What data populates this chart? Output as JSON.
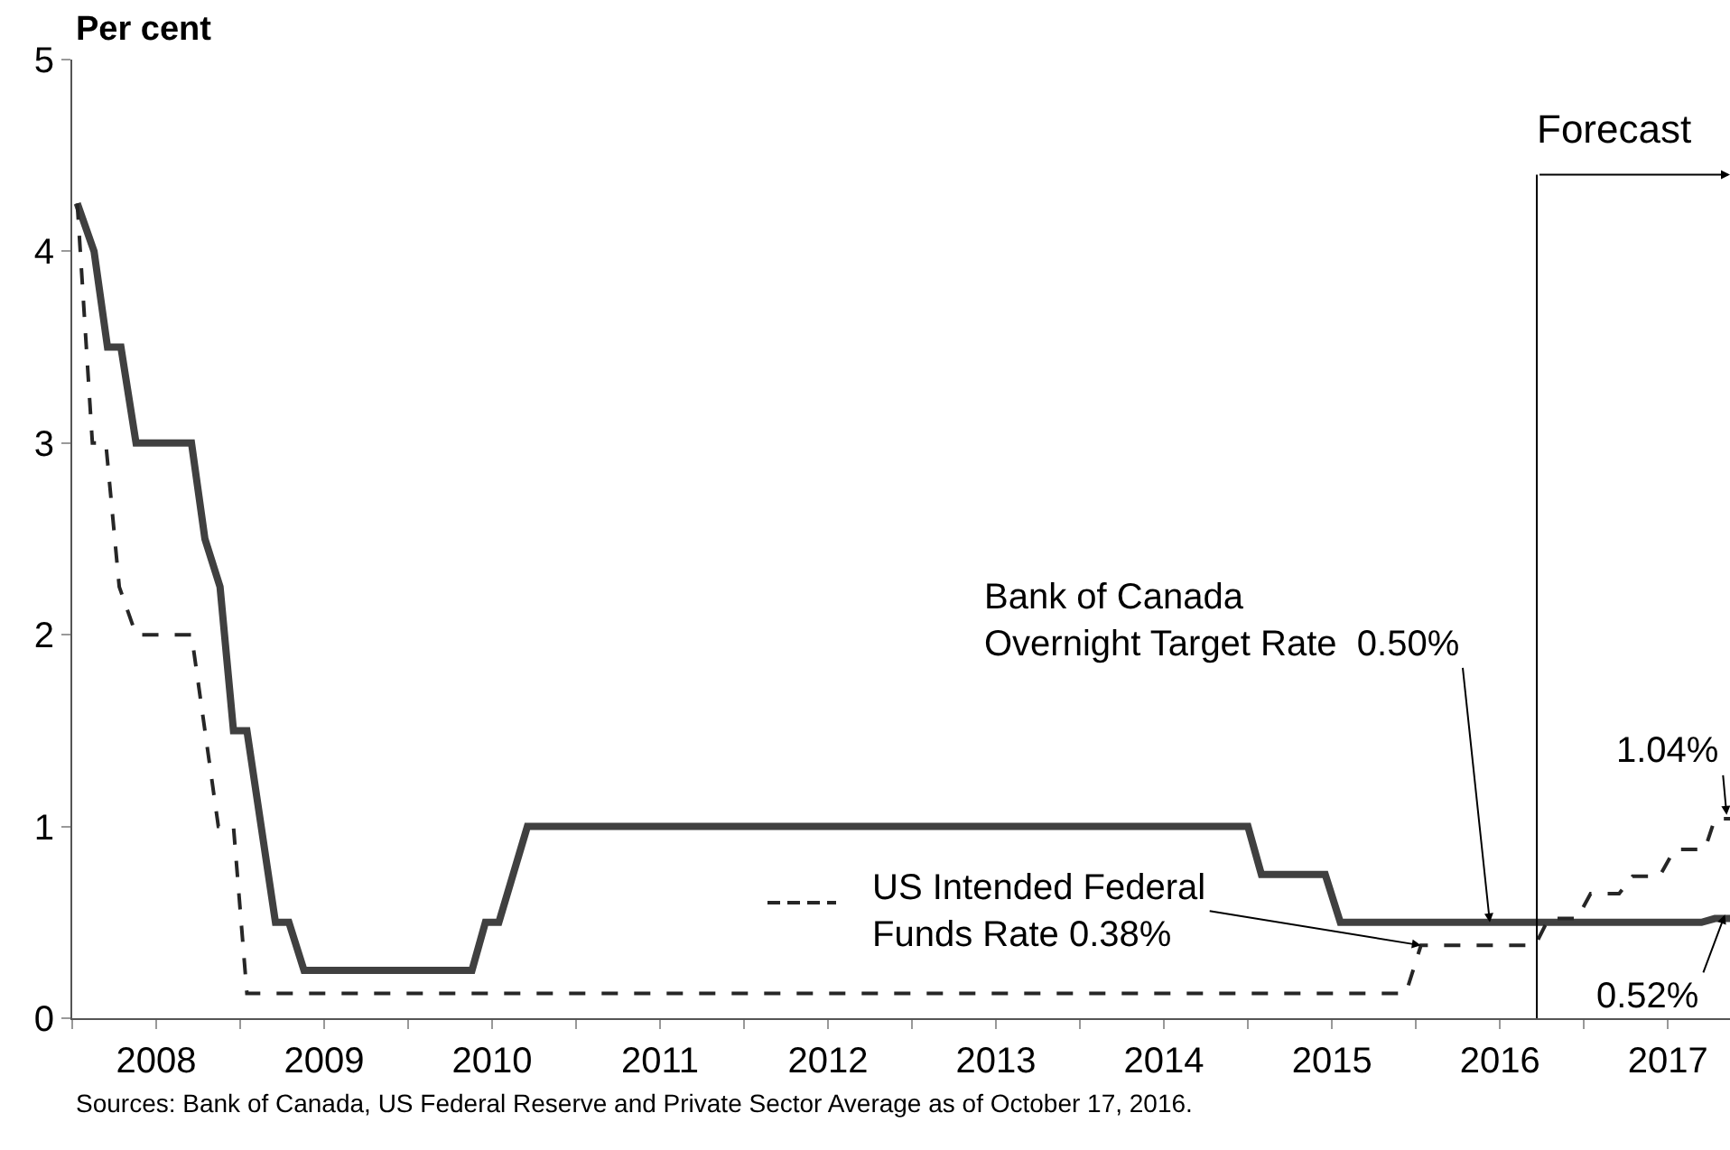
{
  "chart_data": {
    "type": "line",
    "ylabel": "Per cent",
    "xlim": [
      2008,
      2017.87
    ],
    "ylim": [
      0,
      5
    ],
    "xticks": [
      {
        "value": 2008,
        "label": null
      },
      {
        "value": 2008.5,
        "label": "2008"
      },
      {
        "value": 2009,
        "label": null
      },
      {
        "value": 2009.5,
        "label": "2009"
      },
      {
        "value": 2010,
        "label": null
      },
      {
        "value": 2010.5,
        "label": "2010"
      },
      {
        "value": 2011,
        "label": null
      },
      {
        "value": 2011.5,
        "label": "2011"
      },
      {
        "value": 2012,
        "label": null
      },
      {
        "value": 2012.5,
        "label": "2012"
      },
      {
        "value": 2013,
        "label": null
      },
      {
        "value": 2013.5,
        "label": "2013"
      },
      {
        "value": 2014,
        "label": null
      },
      {
        "value": 2014.5,
        "label": "2014"
      },
      {
        "value": 2015,
        "label": null
      },
      {
        "value": 2015.5,
        "label": "2015"
      },
      {
        "value": 2016,
        "label": null
      },
      {
        "value": 2016.5,
        "label": "2016"
      },
      {
        "value": 2017,
        "label": null
      },
      {
        "value": 2017.5,
        "label": "2017"
      }
    ],
    "yticks": [
      0,
      1,
      2,
      3,
      4,
      5
    ],
    "grid": false,
    "marker": "none",
    "series": [
      {
        "color": "#404040",
        "line_style": "solid",
        "x": [
          2008.03,
          2008.13,
          2008.21,
          2008.29,
          2008.38,
          2008.71,
          2008.79,
          2008.88,
          2008.96,
          2009.04,
          2009.21,
          2009.29,
          2009.38,
          2010.38,
          2010.46,
          2010.54,
          2010.71,
          2015.0,
          2015.08,
          2015.46,
          2015.55,
          2017.7,
          2017.78,
          2017.87
        ],
        "values": [
          4.25,
          4.0,
          3.5,
          3.5,
          3.0,
          3.0,
          2.5,
          2.25,
          1.5,
          1.5,
          0.5,
          0.5,
          0.25,
          0.25,
          0.5,
          0.5,
          1.0,
          1.0,
          0.75,
          0.75,
          0.5,
          0.5,
          0.52,
          0.52
        ]
      },
      {
        "color": "#262626",
        "line_style": "dashed",
        "x": [
          2008.03,
          2008.12,
          2008.2,
          2008.28,
          2008.38,
          2008.71,
          2008.87,
          2008.96,
          2009.04,
          2015.94,
          2016.03,
          2016.71,
          2016.79,
          2016.96,
          2017.04,
          2017.21,
          2017.29,
          2017.45,
          2017.54,
          2017.72,
          2017.78,
          2017.87
        ],
        "values": [
          4.25,
          3.0,
          3.0,
          2.25,
          2.0,
          2.0,
          1.0,
          1.0,
          0.13,
          0.13,
          0.38,
          0.38,
          0.52,
          0.52,
          0.65,
          0.65,
          0.74,
          0.74,
          0.88,
          0.88,
          1.04,
          1.04
        ]
      }
    ],
    "ref_lines": [
      {
        "axis": "x",
        "value": 2016.72,
        "label": "Forecast",
        "color": "#000000"
      }
    ],
    "annotations": [
      {
        "text": "Bank of Canada\nOvernight Target Rate  0.50%",
        "x": 2016.44,
        "y": 0.5
      },
      {
        "text": "US Intended Federal\nFunds Rate 0.38%",
        "x": 2016.03,
        "y": 0.38
      },
      {
        "text": "1.04%",
        "x": 2017.85,
        "y": 1.06
      },
      {
        "text": "0.52%",
        "x": 2017.84,
        "y": 0.54
      },
      "Sources: Bank of Canada, US Federal Reserve and Private Sector Average as of October 17, 2016."
    ]
  }
}
